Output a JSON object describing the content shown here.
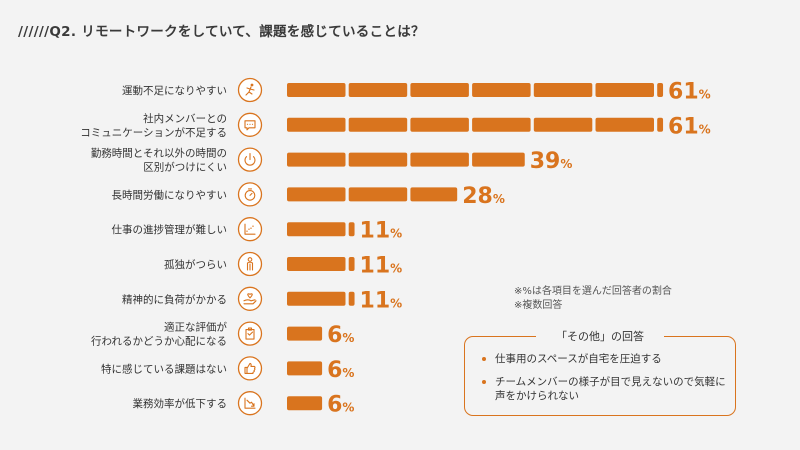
{
  "title": "//////Q2. リモートワークをしていて、課題を感じていることは？",
  "colors": {
    "accent": "#d9741e",
    "text": "#333333",
    "background": "#f3f3f3"
  },
  "unit": "%",
  "note": {
    "line1": "※%は各項目を選んだ回答者の割合",
    "line2": "※複数回答"
  },
  "other_box": {
    "title": "「その他」の回答",
    "items": [
      "仕事用のスペースが自宅を圧迫する",
      "チームメンバーの様子が目で見えないので気軽に声をかけられない"
    ]
  },
  "chart_data": {
    "type": "bar",
    "orientation": "horizontal",
    "categories": [
      [
        "運動不足になりやすい"
      ],
      [
        "社内メンバーとの",
        "コミュニケーションが不足する"
      ],
      [
        "勤務時間とそれ以外の時間の",
        "区別がつけにくい"
      ],
      [
        "長時間労働になりやすい"
      ],
      [
        "仕事の進捗管理が難しい"
      ],
      [
        "孤独がつらい"
      ],
      [
        "精神的に負荷がかかる"
      ],
      [
        "適正な評価が",
        "行われるかどうか心配になる"
      ],
      [
        "特に感じている課題はない"
      ],
      [
        "業務効率が低下する"
      ]
    ],
    "icons": [
      "running-icon",
      "chat-icon",
      "power-icon",
      "stopwatch-icon",
      "progress-chart-icon",
      "person-icon",
      "hand-heart-icon",
      "clipboard-icon",
      "thumbs-up-icon",
      "declining-chart-icon"
    ],
    "values": [
      61,
      61,
      39,
      28,
      11,
      11,
      11,
      6,
      6,
      6
    ],
    "xlim": [
      0,
      65
    ],
    "legend": "none",
    "grid": false
  }
}
